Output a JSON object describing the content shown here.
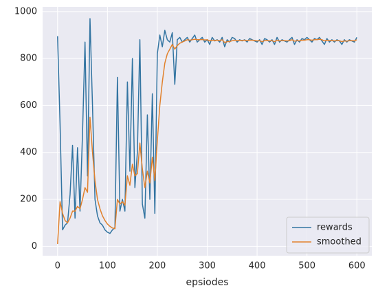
{
  "chart_data": {
    "type": "line",
    "xlabel": "epsiodes",
    "x": [
      0,
      5,
      10,
      15,
      20,
      25,
      30,
      35,
      40,
      45,
      50,
      55,
      60,
      65,
      70,
      75,
      80,
      85,
      90,
      95,
      100,
      105,
      110,
      115,
      120,
      125,
      130,
      135,
      140,
      145,
      150,
      155,
      160,
      165,
      170,
      175,
      180,
      185,
      190,
      195,
      200,
      205,
      210,
      215,
      220,
      225,
      230,
      235,
      240,
      245,
      250,
      255,
      260,
      265,
      270,
      275,
      280,
      285,
      290,
      295,
      300,
      305,
      310,
      315,
      320,
      325,
      330,
      335,
      340,
      345,
      350,
      355,
      360,
      365,
      370,
      375,
      380,
      385,
      390,
      395,
      400,
      405,
      410,
      415,
      420,
      425,
      430,
      435,
      440,
      445,
      450,
      455,
      460,
      465,
      470,
      475,
      480,
      485,
      490,
      495,
      500,
      505,
      510,
      515,
      520,
      525,
      530,
      535,
      540,
      545,
      550,
      555,
      560,
      565,
      570,
      575,
      580,
      585,
      590,
      595,
      600
    ],
    "series": [
      {
        "name": "rewards",
        "color": "#3274a1",
        "values": [
          895,
          520,
          70,
          90,
          100,
          220,
          430,
          120,
          420,
          150,
          480,
          870,
          300,
          970,
          600,
          200,
          130,
          100,
          90,
          70,
          60,
          55,
          70,
          80,
          720,
          150,
          200,
          150,
          700,
          320,
          800,
          250,
          400,
          880,
          180,
          120,
          560,
          200,
          650,
          140,
          820,
          900,
          850,
          920,
          880,
          870,
          910,
          690,
          880,
          890,
          870,
          880,
          890,
          870,
          885,
          900,
          870,
          880,
          890,
          870,
          880,
          860,
          890,
          875,
          880,
          870,
          890,
          850,
          880,
          870,
          890,
          885,
          870,
          880,
          875,
          880,
          870,
          885,
          880,
          875,
          870,
          880,
          860,
          885,
          880,
          870,
          880,
          860,
          890,
          870,
          880,
          875,
          870,
          880,
          890,
          860,
          880,
          870,
          885,
          880,
          890,
          880,
          870,
          885,
          880,
          890,
          875,
          860,
          885,
          870,
          880,
          870,
          880,
          875,
          860,
          880,
          870,
          880,
          875,
          870,
          890
        ]
      },
      {
        "name": "smoothed",
        "color": "#e1812c",
        "values": [
          10,
          190,
          140,
          110,
          100,
          120,
          150,
          150,
          170,
          160,
          200,
          250,
          230,
          550,
          400,
          280,
          200,
          160,
          130,
          110,
          95,
          85,
          78,
          75,
          200,
          180,
          190,
          175,
          300,
          260,
          350,
          300,
          310,
          440,
          330,
          250,
          320,
          270,
          380,
          280,
          450,
          600,
          700,
          780,
          820,
          840,
          860,
          840,
          855,
          865,
          870,
          875,
          880,
          878,
          880,
          882,
          880,
          880,
          881,
          879,
          880,
          875,
          878,
          877,
          878,
          876,
          880,
          868,
          872,
          872,
          876,
          878,
          876,
          877,
          877,
          878,
          876,
          878,
          878,
          877,
          875,
          876,
          872,
          876,
          877,
          875,
          876,
          872,
          878,
          875,
          876,
          876,
          875,
          876,
          880,
          874,
          876,
          875,
          878,
          878,
          880,
          880,
          878,
          880,
          880,
          882,
          880,
          875,
          878,
          876,
          877,
          875,
          876,
          876,
          872,
          875,
          874,
          876,
          876,
          875,
          880
        ]
      }
    ],
    "xlim": [
      -30,
      630
    ],
    "xticks": [
      0,
      100,
      200,
      300,
      400,
      500,
      600
    ],
    "ylim": [
      -40,
      1020
    ],
    "yticks": [
      0,
      200,
      400,
      600,
      800,
      1000
    ],
    "grid": true,
    "legend": "lower right"
  }
}
